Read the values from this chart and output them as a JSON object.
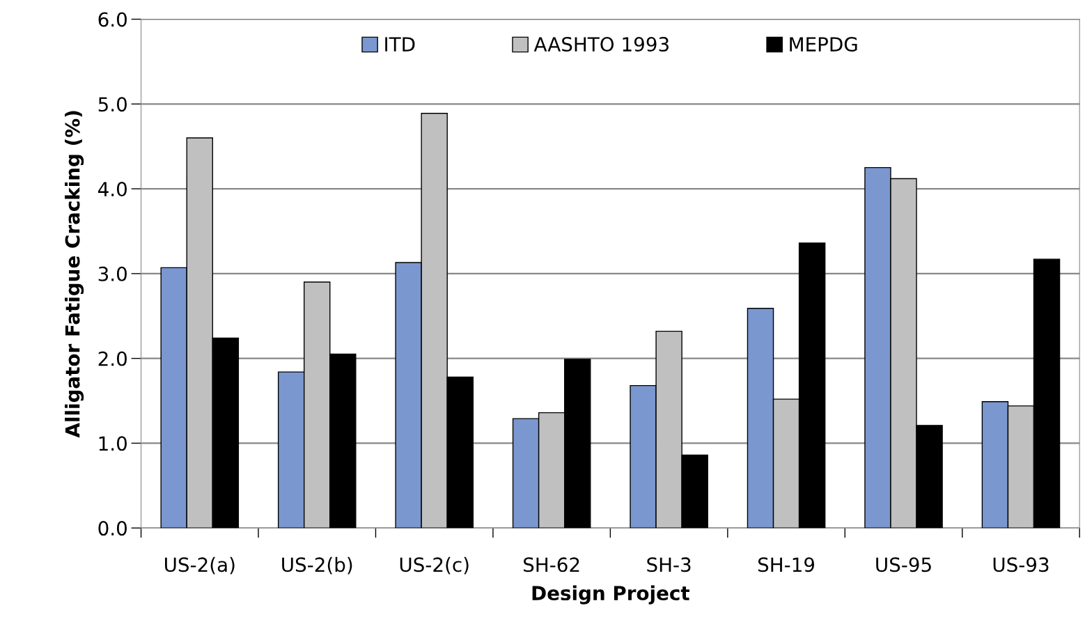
{
  "chart_data": {
    "type": "bar",
    "xlabel": "Design Project",
    "ylabel": "Alligator Fatigue Cracking (%)",
    "categories": [
      "US-2(a)",
      "US-2(b)",
      "US-2(c)",
      "SH-62",
      "SH-3",
      "SH-19",
      "US-95",
      "US-93"
    ],
    "series": [
      {
        "name": "ITD",
        "color": "#7b97cf",
        "values": [
          3.07,
          1.84,
          3.13,
          1.29,
          1.68,
          2.59,
          4.25,
          1.49
        ]
      },
      {
        "name": "AASHTO 1993",
        "color": "#c0c0c0",
        "values": [
          4.6,
          2.9,
          4.89,
          1.36,
          2.32,
          1.52,
          4.12,
          1.44
        ]
      },
      {
        "name": "MEPDG",
        "color": "#000000",
        "values": [
          2.24,
          2.05,
          1.78,
          1.99,
          0.86,
          3.36,
          1.21,
          3.17
        ]
      }
    ],
    "ylim": [
      0,
      6
    ],
    "yticks": [
      {
        "value": 0,
        "label": "0.0"
      },
      {
        "value": 1,
        "label": "1.0"
      },
      {
        "value": 2,
        "label": "2.0"
      },
      {
        "value": 3,
        "label": "3.0"
      },
      {
        "value": 4,
        "label": "4.0"
      },
      {
        "value": 5,
        "label": "5.0"
      },
      {
        "value": 6,
        "label": "6.0"
      }
    ],
    "grid": "y",
    "legend": "top"
  }
}
